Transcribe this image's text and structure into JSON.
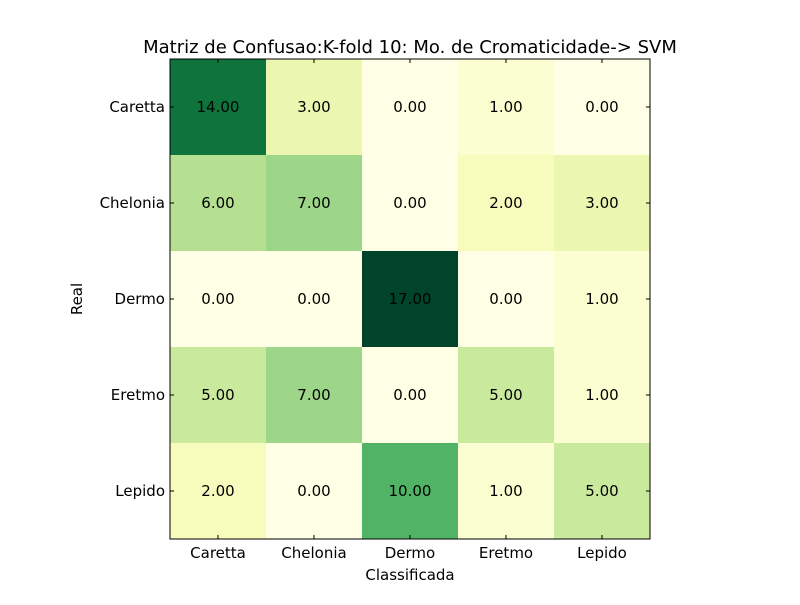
{
  "chart_data": {
    "type": "heatmap",
    "title": "Matriz de Confusao:K-fold 10: Mo. de Cromaticidade-> SVM",
    "xlabel": "Classificada",
    "ylabel": "Real",
    "x_categories": [
      "Caretta",
      "Chelonia",
      "Dermo",
      "Eretmo",
      "Lepido"
    ],
    "y_categories": [
      "Caretta",
      "Chelonia",
      "Dermo",
      "Eretmo",
      "Lepido"
    ],
    "values": [
      [
        14,
        3,
        0,
        1,
        0
      ],
      [
        6,
        7,
        0,
        2,
        3
      ],
      [
        0,
        0,
        17,
        0,
        1
      ],
      [
        5,
        7,
        0,
        5,
        1
      ],
      [
        2,
        0,
        10,
        1,
        5
      ]
    ],
    "value_labels": [
      [
        "14.00",
        "3.00",
        "0.00",
        "1.00",
        "0.00"
      ],
      [
        "6.00",
        "7.00",
        "0.00",
        "2.00",
        "3.00"
      ],
      [
        "0.00",
        "0.00",
        "17.00",
        "0.00",
        "1.00"
      ],
      [
        "5.00",
        "7.00",
        "0.00",
        "5.00",
        "1.00"
      ],
      [
        "2.00",
        "0.00",
        "10.00",
        "1.00",
        "5.00"
      ]
    ],
    "value_range": [
      0,
      17
    ],
    "colormap": "YlGn",
    "colormap_stops": [
      "#ffffe5",
      "#f7fcb9",
      "#d9f0a3",
      "#addd8e",
      "#78c679",
      "#41ab5d",
      "#238443",
      "#006837",
      "#004529"
    ],
    "grid": false,
    "legend": "none"
  }
}
